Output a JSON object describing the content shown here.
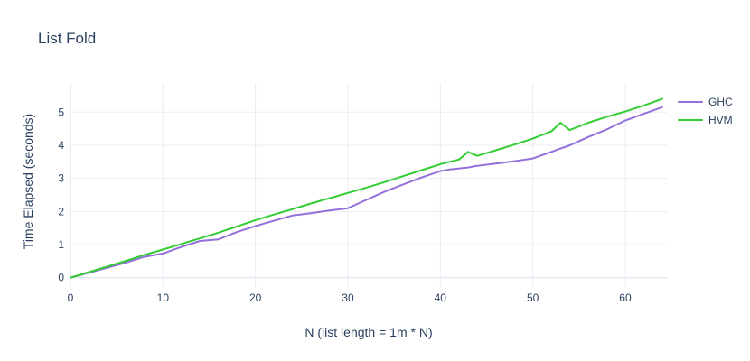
{
  "title": "List Fold",
  "legend": {
    "position": "right-top-outside",
    "items": [
      {
        "label": "GHC",
        "color": "#9370db"
      },
      {
        "label": "HVM",
        "color": "#32cd32"
      }
    ]
  },
  "colors": {
    "ghc_line": "#9370db",
    "hvm_line": "#32cd32",
    "text": "#2a3f5f",
    "gridline": "#e9edf5",
    "zeroline": "#d9dfea",
    "background": "#ffffff"
  },
  "chart_data": {
    "type": "line",
    "title": "List Fold",
    "xlabel": "N (list length = 1m * N)",
    "ylabel": "Time Elapsed (seconds)",
    "xticks": [
      0,
      10,
      20,
      30,
      40,
      50,
      60
    ],
    "yticks": [
      0,
      1,
      2,
      3,
      4,
      5
    ],
    "xlim": [
      0,
      64.5
    ],
    "ylim": [
      -0.28,
      5.88
    ],
    "grid": true,
    "legend_position": "right-top-outside",
    "x": [
      0,
      2,
      4,
      6,
      8,
      10,
      12,
      14,
      16,
      18,
      20,
      22,
      24,
      26,
      28,
      30,
      32,
      34,
      36,
      38,
      40,
      41,
      42,
      43,
      44,
      46,
      48,
      50,
      52,
      53,
      54,
      56,
      58,
      60,
      62,
      64
    ],
    "series": [
      {
        "name": "GHC",
        "color": "#9370db",
        "values": [
          0.0,
          0.15,
          0.3,
          0.46,
          0.63,
          0.73,
          0.93,
          1.11,
          1.16,
          1.38,
          1.56,
          1.72,
          1.88,
          1.95,
          2.03,
          2.1,
          2.35,
          2.6,
          2.82,
          3.03,
          3.22,
          3.27,
          3.3,
          3.33,
          3.38,
          3.45,
          3.52,
          3.6,
          3.8,
          3.9,
          4.0,
          4.25,
          4.48,
          4.75,
          4.95,
          5.15
        ]
      },
      {
        "name": "HVM",
        "color": "#32cd32",
        "values": [
          0.0,
          0.17,
          0.34,
          0.51,
          0.69,
          0.85,
          1.02,
          1.19,
          1.36,
          1.55,
          1.74,
          1.91,
          2.07,
          2.24,
          2.4,
          2.56,
          2.72,
          2.89,
          3.07,
          3.25,
          3.43,
          3.5,
          3.57,
          3.8,
          3.68,
          3.85,
          4.02,
          4.2,
          4.42,
          4.68,
          4.46,
          4.68,
          4.86,
          5.02,
          5.2,
          5.4
        ]
      }
    ]
  }
}
